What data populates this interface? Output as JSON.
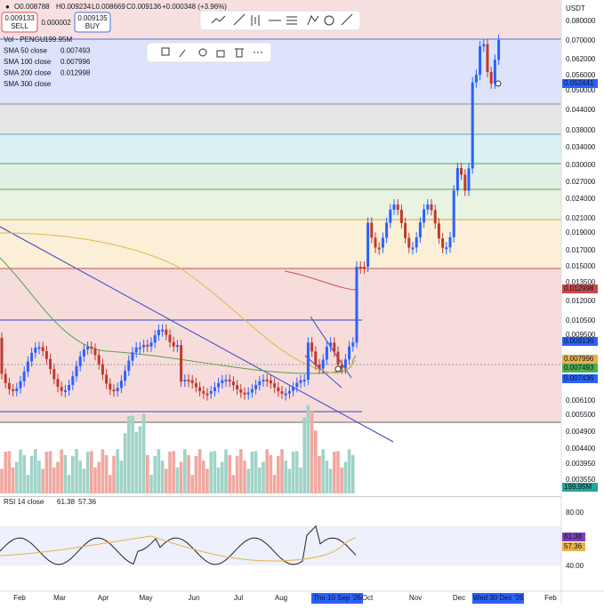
{
  "header": {
    "symbol_dot": "●",
    "open": "O0.008788",
    "high": "H0.009234",
    "low": "L0.008669",
    "close": "C0.009136",
    "change": "+0.000348 (+3.96%)",
    "sell_price": "0.009133",
    "sell_label": "SELL",
    "spread": "0.000002",
    "buy_price": "0.009135",
    "buy_label": "BUY"
  },
  "indicators": [
    {
      "name": "Vol · PENGU",
      "value": "199.95M"
    },
    {
      "name": "SMA 50 close",
      "value": "0.007493"
    },
    {
      "name": "SMA 100 close",
      "value": "0.007996"
    },
    {
      "name": "SMA 200 close",
      "value": "0.012998"
    },
    {
      "name": "SMA 300 close"
    }
  ],
  "price_axis": {
    "currency": "USDT",
    "labels": [
      "0.080000",
      "0.070000",
      "0.062000",
      "0.056000",
      "0.050000",
      "0.044000",
      "0.038000",
      "0.034000",
      "0.030000",
      "0.027000",
      "0.024000",
      "0.021000",
      "0.019000",
      "0.017000",
      "0.015000",
      "0.013500",
      "0.012000",
      "0.010500",
      "0.009500",
      "0.006100",
      "0.005500",
      "0.004900",
      "0.004400",
      "0.003950",
      "0.003550"
    ],
    "badges": [
      "0.052441",
      "0.012998",
      "0.009136",
      "0.007996",
      "0.007493",
      "0.007436",
      "199.95M"
    ]
  },
  "time_axis": {
    "labels": [
      "Feb",
      "Mar",
      "Apr",
      "May",
      "Jun",
      "Jul",
      "Aug",
      "Thu 10 Sep '26",
      "Oct",
      "Nov",
      "Dec",
      "Wed 30 Dec '26",
      "Feb"
    ]
  },
  "rsi": {
    "title": "RSI 14 close",
    "value": "61.38",
    "sma": "57.36",
    "axis_labels": [
      "80.00",
      "40.00"
    ],
    "badges": [
      "61.38",
      "57.36"
    ]
  }
}
